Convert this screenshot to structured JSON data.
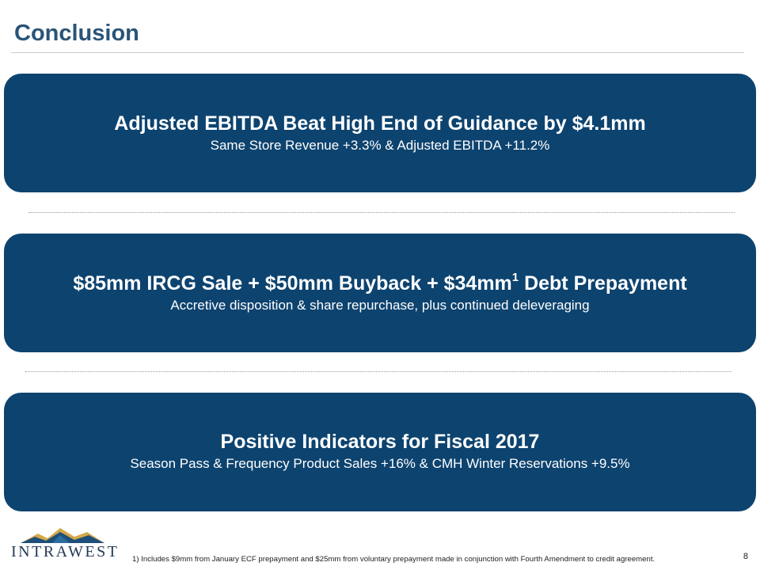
{
  "title": "Conclusion",
  "cards": [
    {
      "headline": "Adjusted EBITDA Beat High End of Guidance by $4.1mm",
      "sub": "Same Store Revenue +3.3% & Adjusted EBITDA +11.2%"
    },
    {
      "headline_before": "$85mm IRCG Sale + $50mm Buyback + $34mm",
      "headline_sup": "1",
      "headline_after": " Debt Prepayment",
      "sub": "Accretive disposition & share repurchase, plus continued deleveraging"
    },
    {
      "headline": "Positive Indicators for Fiscal 2017",
      "sub": "Season Pass & Frequency Product Sales +16% & CMH Winter Reservations +9.5%"
    }
  ],
  "logo": {
    "wordmark": "INTRAWEST",
    "icon": "mountain-icon"
  },
  "footnote": "1) Includes $9mm from January ECF prepayment and $25mm from voluntary prepayment made in conjunction with Fourth Amendment to credit agreement.",
  "page_number": "8",
  "colors": {
    "card_bg": "#0d436f",
    "title": "#2a5478",
    "logo_gold": "#d4a848",
    "logo_blue": "#1e4f7a"
  }
}
